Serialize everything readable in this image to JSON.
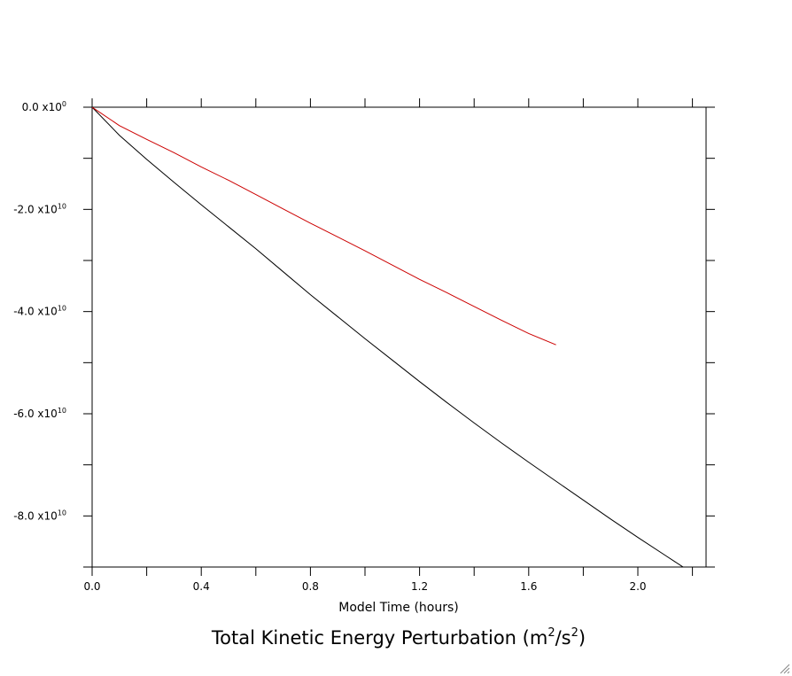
{
  "chart_data": {
    "type": "line",
    "title": {
      "prefix": "Total Kinetic Energy Perturbation (m",
      "sup1": "2",
      "mid": "/s",
      "sup2": "2",
      "suffix": ")"
    },
    "xlabel": "Model Time (hours)",
    "ylabel": "",
    "xlim": [
      0,
      2.25
    ],
    "ylim": [
      -90000000000,
      0
    ],
    "x_ticks": [
      {
        "value": 0.0,
        "label": "0.0"
      },
      {
        "value": 0.4,
        "label": "0.4"
      },
      {
        "value": 0.8,
        "label": "0.8"
      },
      {
        "value": 1.2,
        "label": "1.2"
      },
      {
        "value": 1.6,
        "label": "1.6"
      },
      {
        "value": 2.0,
        "label": "2.0"
      }
    ],
    "x_minor_step": 0.2,
    "y_ticks": [
      {
        "value": 0,
        "mant": "0.0 x10",
        "exp": "0"
      },
      {
        "value": -20000000000,
        "mant": "-2.0 x10",
        "exp": "10"
      },
      {
        "value": -40000000000,
        "mant": "-4.0 x10",
        "exp": "10"
      },
      {
        "value": -60000000000,
        "mant": "-6.0 x10",
        "exp": "10"
      },
      {
        "value": -80000000000,
        "mant": "-8.0 x10",
        "exp": "10"
      }
    ],
    "y_minor_step": 10000000000,
    "grid": false,
    "series": [
      {
        "color": "#000000",
        "x": [
          0,
          0.1,
          0.2,
          0.3,
          0.4,
          0.5,
          0.6,
          0.7,
          0.8,
          0.9,
          1.0,
          1.1,
          1.2,
          1.3,
          1.4,
          1.5,
          1.6,
          1.7,
          1.8,
          1.9,
          2.0,
          2.1,
          2.2,
          2.25
        ],
        "values": [
          0,
          -5500000000,
          -10200000000,
          -14700000000,
          -19100000000,
          -23400000000,
          -27700000000,
          -32200000000,
          -36700000000,
          -41000000000,
          -45300000000,
          -49500000000,
          -53700000000,
          -57800000000,
          -61800000000,
          -65700000000,
          -69500000000,
          -73200000000,
          -76900000000,
          -80600000000,
          -84200000000,
          -87700000000,
          -91200000000,
          -92900000000
        ]
      },
      {
        "color": "#cc0000",
        "x": [
          0,
          0.1,
          0.2,
          0.3,
          0.4,
          0.5,
          0.6,
          0.7,
          0.8,
          0.9,
          1.0,
          1.1,
          1.2,
          1.3,
          1.4,
          1.5,
          1.6,
          1.7
        ],
        "values": [
          0,
          -3600000000,
          -6300000000,
          -8900000000,
          -11700000000,
          -14300000000,
          -17100000000,
          -19900000000,
          -22700000000,
          -25400000000,
          -28100000000,
          -30900000000,
          -33700000000,
          -36300000000,
          -39000000000,
          -41700000000,
          -44300000000,
          -46500000000
        ]
      }
    ]
  }
}
